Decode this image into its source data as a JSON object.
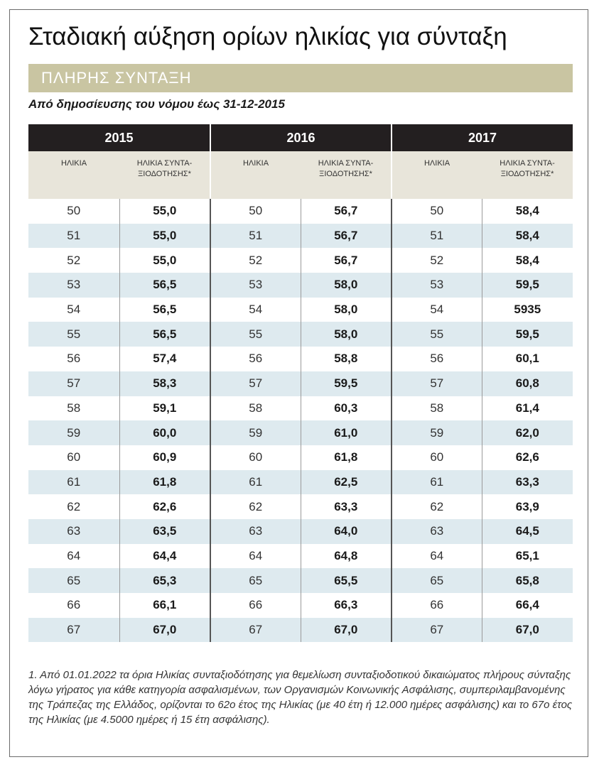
{
  "title": "Σταδιακή αύξηση ορίων ηλικίας για σύνταξη",
  "banner": "ΠΛΗΡΗΣ ΣΥΝΤΑΞΗ",
  "subtitle": "Από δημοσίευσης του νόμου έως 31-12-2015",
  "table": {
    "years": [
      "2015",
      "2016",
      "2017"
    ],
    "age_header": "ΗΛΙΚΙΑ",
    "pension_header_line1": "ΗΛΙΚΙΑ ΣΥΝΤΑ-",
    "pension_header_line2": "ΞΙΟΔΟΤΗΣΗΣ*",
    "rows": [
      [
        "50",
        "55,0",
        "50",
        "56,7",
        "50",
        "58,4"
      ],
      [
        "51",
        "55,0",
        "51",
        "56,7",
        "51",
        "58,4"
      ],
      [
        "52",
        "55,0",
        "52",
        "56,7",
        "52",
        "58,4"
      ],
      [
        "53",
        "56,5",
        "53",
        "58,0",
        "53",
        "59,5"
      ],
      [
        "54",
        "56,5",
        "54",
        "58,0",
        "54",
        "5935"
      ],
      [
        "55",
        "56,5",
        "55",
        "58,0",
        "55",
        "59,5"
      ],
      [
        "56",
        "57,4",
        "56",
        "58,8",
        "56",
        "60,1"
      ],
      [
        "57",
        "58,3",
        "57",
        "59,5",
        "57",
        "60,8"
      ],
      [
        "58",
        "59,1",
        "58",
        "60,3",
        "58",
        "61,4"
      ],
      [
        "59",
        "60,0",
        "59",
        "61,0",
        "59",
        "62,0"
      ],
      [
        "60",
        "60,9",
        "60",
        "61,8",
        "60",
        "62,6"
      ],
      [
        "61",
        "61,8",
        "61",
        "62,5",
        "61",
        "63,3"
      ],
      [
        "62",
        "62,6",
        "62",
        "63,3",
        "62",
        "63,9"
      ],
      [
        "63",
        "63,5",
        "63",
        "64,0",
        "63",
        "64,5"
      ],
      [
        "64",
        "64,4",
        "64",
        "64,8",
        "64",
        "65,1"
      ],
      [
        "65",
        "65,3",
        "65",
        "65,5",
        "65",
        "65,8"
      ],
      [
        "66",
        "66,1",
        "66",
        "66,3",
        "66",
        "66,4"
      ],
      [
        "67",
        "67,0",
        "67",
        "67,0",
        "67",
        "67,0"
      ]
    ]
  },
  "footnote": "1. Από 01.01.2022 τα όρια Ηλικίας συνταξιοδότησης για θεμελίωση συνταξιοδοτικού δικαιώματος πλήρους σύνταξης λόγω γήρατος για κάθε κατηγορία ασφαλισμένων, των Οργανισμών Κοινωνικής Ασφάλισης, συμπεριλαμβανομένης της Τράπεζας της Ελλάδος, ορίζονται το 62ο έτος της Ηλικίας (με 40 έτη ή 12.000 ημέρες ασφάλισης) και το 67ο έτος της Ηλικίας (με 4.5000 ημέρες ή 15 έτη ασφάλισης)."
}
